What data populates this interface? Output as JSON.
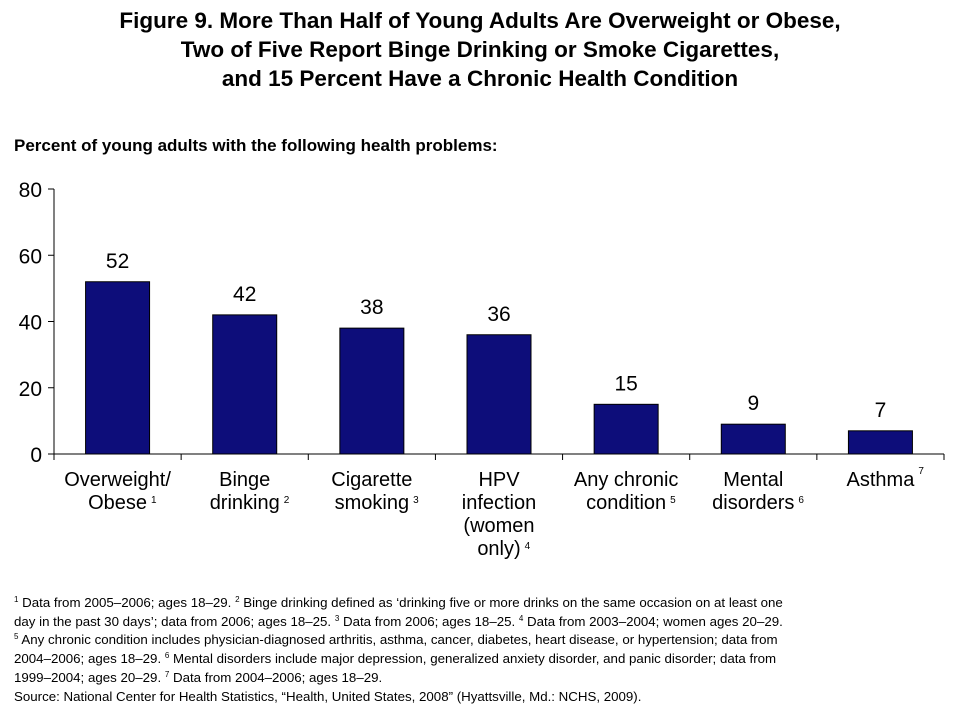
{
  "title": {
    "line1": "Figure 9. More Than Half of Young Adults Are Overweight or Obese,",
    "line2": "Two of Five Report Binge Drinking or Smoke Cigarettes,",
    "line3": "and 15 Percent Have a Chronic Health Condition"
  },
  "chart_data": {
    "type": "bar",
    "title": "Figure 9. More Than Half of Young Adults Are Overweight or Obese, Two of Five Report Binge Drinking or Smoke Cigarettes, and 15 Percent Have a Chronic Health Condition",
    "subtitle": "Percent of young adults with the following health problems:",
    "xlabel": "",
    "ylabel": "",
    "ylim": [
      0,
      80
    ],
    "yticks": [
      0,
      20,
      40,
      60,
      80
    ],
    "grid": false,
    "legend": "none",
    "bar_color": "#0d0d7a",
    "categories": [
      {
        "lines": [
          "Overweight/",
          "Obese"
        ],
        "footnote": "1"
      },
      {
        "lines": [
          "Binge",
          "drinking"
        ],
        "footnote": "2"
      },
      {
        "lines": [
          "Cigarette",
          "smoking"
        ],
        "footnote": "3"
      },
      {
        "lines": [
          "HPV",
          "infection",
          "(women",
          "only)"
        ],
        "footnote": "4"
      },
      {
        "lines": [
          "Any chronic",
          "condition"
        ],
        "footnote": "5"
      },
      {
        "lines": [
          "Mental",
          "disorders"
        ],
        "footnote": "6"
      },
      {
        "lines": [
          "Asthma"
        ],
        "footnote": "7"
      }
    ],
    "values": [
      52,
      42,
      38,
      36,
      15,
      9,
      7
    ],
    "data_labels": [
      "52",
      "42",
      "38",
      "36",
      "15",
      "9",
      "7"
    ]
  },
  "footnotes": {
    "line1": [
      {
        "sup": "1"
      },
      {
        "t": " Data from 2005–2006; ages 18–29.  "
      },
      {
        "sup": "2"
      },
      {
        "t": " Binge drinking defined as ‘drinking five or more drinks on the same occasion on at least one"
      }
    ],
    "line2": [
      {
        "t": "day in the past 30 days’; data from 2006; ages 18–25.  "
      },
      {
        "sup": "3"
      },
      {
        "t": " Data from 2006; ages 18–25.  "
      },
      {
        "sup": "4"
      },
      {
        "t": " Data from 2003–2004; women ages 20–29."
      }
    ],
    "line3": [
      {
        "sup": "5"
      },
      {
        "t": " Any chronic condition includes physician-diagnosed arthritis, asthma, cancer, diabetes, heart disease, or hypertension; data from"
      }
    ],
    "line4": [
      {
        "t": "2004–2006; ages 18–29.  "
      },
      {
        "sup": "6"
      },
      {
        "t": " Mental disorders include major depression, generalized anxiety disorder, and panic disorder; data from"
      }
    ],
    "line5": [
      {
        "t": "1999–2004; ages 20–29.  "
      },
      {
        "sup": "7"
      },
      {
        "t": " Data from 2004–2006; ages 18–29."
      }
    ],
    "source": "Source: National Center for Health Statistics, “Health, United States, 2008” (Hyattsville, Md.: NCHS, 2009)."
  }
}
